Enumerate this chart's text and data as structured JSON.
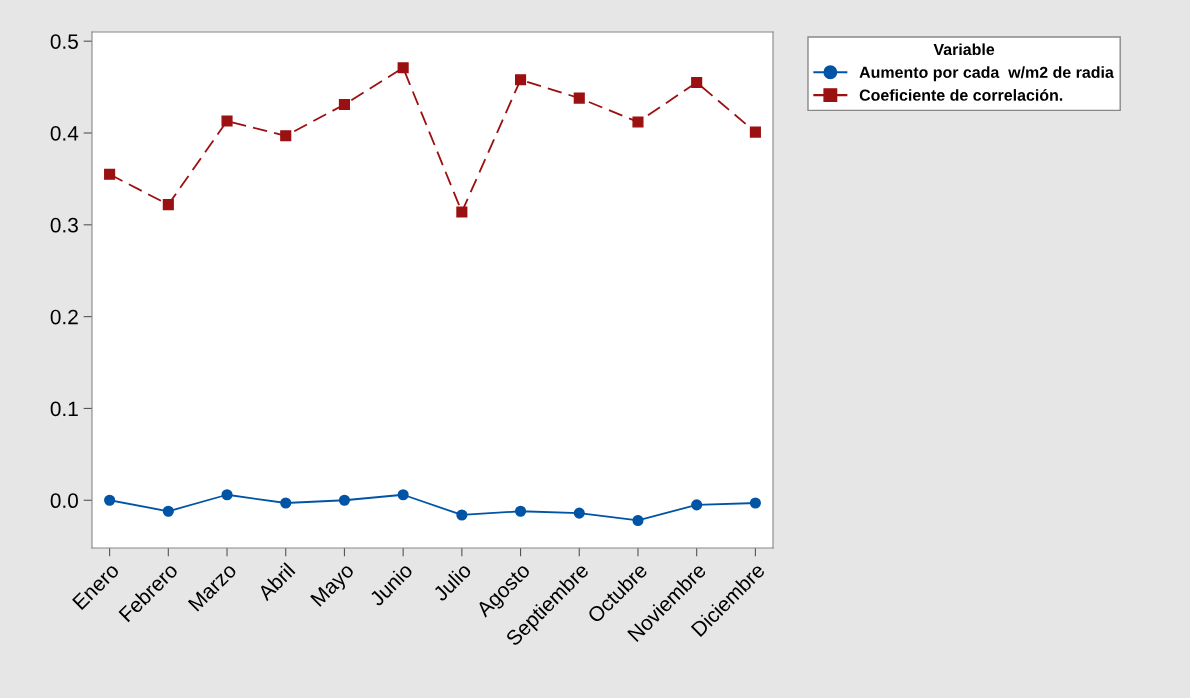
{
  "chart_data": {
    "type": "line",
    "categories": [
      "Enero",
      "Febrero",
      "Marzo",
      "Abril",
      "Mayo",
      "Junio",
      "Julio",
      "Agosto",
      "Septiembre",
      "Octubre",
      "Noviembre",
      "Diciembre"
    ],
    "series": [
      {
        "name": "Aumento por cada  w/m2 de radia",
        "color": "#0054a6",
        "marker": "circle",
        "line_style": "solid",
        "values": [
          0.0,
          -0.012,
          0.006,
          -0.003,
          0.0,
          0.006,
          -0.016,
          -0.012,
          -0.014,
          -0.022,
          -0.005,
          -0.003
        ]
      },
      {
        "name": "Coeficiente de correlación.",
        "color": "#9b1010",
        "marker": "square",
        "line_style": "dashed",
        "values": [
          0.355,
          0.322,
          0.413,
          0.397,
          0.431,
          0.471,
          0.314,
          0.458,
          0.438,
          0.412,
          0.455,
          0.401
        ]
      }
    ],
    "legend_title": "Variable",
    "legend": "top right",
    "ylim": [
      -0.052,
      0.51
    ],
    "yticks": [
      {
        "value": 0,
        "label": "0.0"
      },
      0.1,
      0.2,
      0.3,
      0.4,
      0.5
    ],
    "grid": false
  }
}
